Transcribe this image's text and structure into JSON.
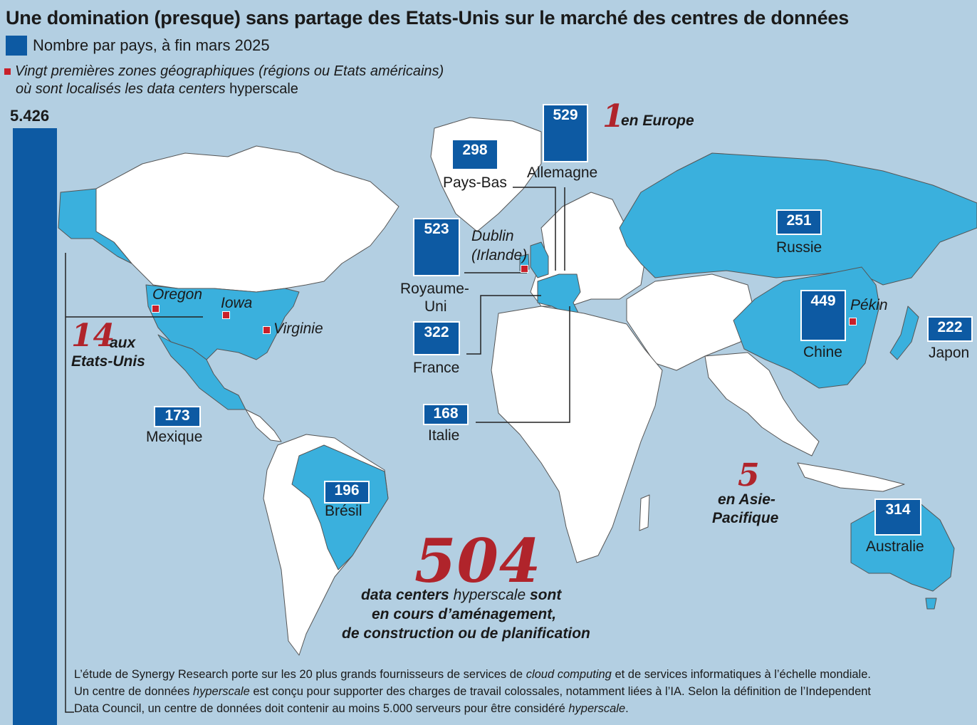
{
  "title": "Une domination (presque) sans partage des Etats-Unis sur le marché des centres de données",
  "legend": {
    "count_label": "Nombre par pays, à fin mars 2025",
    "zones_line1": "Vingt premières zones géographiques (régions ou Etats américains)",
    "zones_line2_italic": "où sont localisés les data centers",
    "zones_line2_upright": "hyperscale",
    "count_color": "#0d5aa3",
    "zone_color": "#c8202a"
  },
  "usa": {
    "value": "5.426"
  },
  "countries": [
    {
      "id": "allemagne",
      "value": "529",
      "name": "Allemagne"
    },
    {
      "id": "pays-bas",
      "value": "298",
      "name": "Pays-Bas"
    },
    {
      "id": "royaume-uni",
      "value": "523",
      "name": "Royaume-Uni"
    },
    {
      "id": "france",
      "value": "322",
      "name": "France"
    },
    {
      "id": "italie",
      "value": "168",
      "name": "Italie"
    },
    {
      "id": "russie",
      "value": "251",
      "name": "Russie"
    },
    {
      "id": "chine",
      "value": "449",
      "name": "Chine"
    },
    {
      "id": "japon",
      "value": "222",
      "name": "Japon"
    },
    {
      "id": "mexique",
      "value": "173",
      "name": "Mexique"
    },
    {
      "id": "bresil",
      "value": "196",
      "name": "Brésil"
    },
    {
      "id": "australie",
      "value": "314",
      "name": "Australie"
    }
  ],
  "royaume_uni_lines": [
    "Royaume-",
    "Uni"
  ],
  "zones": {
    "dublin_line1": "Dublin",
    "dublin_line2": "(Irlande)",
    "oregon": "Oregon",
    "iowa": "Iowa",
    "virginie": "Virginie",
    "pekin": "Pékin"
  },
  "regional": {
    "europe_num": "1",
    "europe_txt": "en Europe",
    "us_num": "14",
    "us_txt1": "aux",
    "us_txt2": "Etats-Unis",
    "asia_num": "5",
    "asia_txt1": "en Asie-",
    "asia_txt2": "Pacifique"
  },
  "pipeline": {
    "number": "504",
    "line1_italic_a": "data centers",
    "line1_upright": "hyperscale",
    "line1_italic_b": "sont",
    "line2": "en cours d’aménagement,",
    "line3": "de construction ou de planification"
  },
  "note": {
    "p1a": "L’étude de Synergy Research porte sur les 20 plus grands fournisseurs de services de ",
    "p1b": "cloud computing",
    "p1c": " et de services informatiques à l’échelle mondiale.",
    "p2a": "Un centre de données ",
    "p2b": "hyperscale",
    "p2c": " est conçu pour supporter des charges de travail colossales, notamment liées à l’IA. Selon la définition de l’Independent",
    "p3a": "Data Council, un centre de données doit contenir au moins 5.000 serveurs pour être considéré ",
    "p3b": "hyperscale",
    "p3c": "."
  }
}
